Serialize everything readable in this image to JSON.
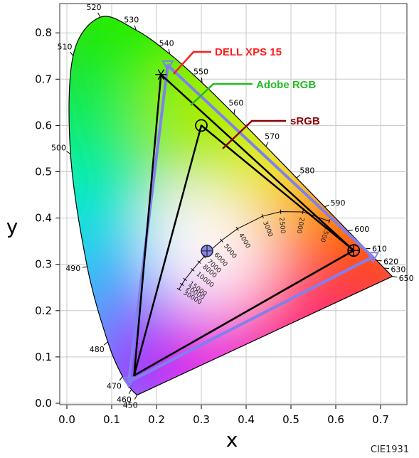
{
  "chart_data": {
    "type": "scatter",
    "title": "",
    "footer": "CIE1931",
    "xlabel": "x",
    "ylabel": "y",
    "xlim": [
      0.0,
      0.75
    ],
    "ylim": [
      0.0,
      0.85
    ],
    "x_ticks": [
      "0.0",
      "0.1",
      "0.2",
      "0.3",
      "0.4",
      "0.5",
      "0.6",
      "0.7"
    ],
    "y_ticks": [
      "0.0",
      "0.1",
      "0.2",
      "0.3",
      "0.4",
      "0.5",
      "0.6",
      "0.7",
      "0.8"
    ],
    "grid": true,
    "spectral_locus": [
      {
        "nm": "450",
        "x": 0.1566,
        "y": 0.0177
      },
      {
        "nm": "460",
        "x": 0.144,
        "y": 0.0297
      },
      {
        "nm": "470",
        "x": 0.1241,
        "y": 0.0578
      },
      {
        "nm": "480",
        "x": 0.0913,
        "y": 0.1327
      },
      {
        "nm": "490",
        "x": 0.0454,
        "y": 0.295
      },
      {
        "nm": "500",
        "x": 0.0082,
        "y": 0.5384
      },
      {
        "nm": "510",
        "x": 0.0139,
        "y": 0.7502
      },
      {
        "nm": "520",
        "x": 0.0743,
        "y": 0.8338
      },
      {
        "nm": "530",
        "x": 0.1547,
        "y": 0.8059
      },
      {
        "nm": "540",
        "x": 0.2296,
        "y": 0.7543
      },
      {
        "nm": "550",
        "x": 0.3016,
        "y": 0.6923
      },
      {
        "nm": "560",
        "x": 0.3731,
        "y": 0.6245
      },
      {
        "nm": "570",
        "x": 0.4441,
        "y": 0.5547
      },
      {
        "nm": "580",
        "x": 0.5125,
        "y": 0.4866
      },
      {
        "nm": "590",
        "x": 0.5752,
        "y": 0.4242
      },
      {
        "nm": "600",
        "x": 0.627,
        "y": 0.3725
      },
      {
        "nm": "610",
        "x": 0.6658,
        "y": 0.334
      },
      {
        "nm": "620",
        "x": 0.6915,
        "y": 0.3083
      },
      {
        "nm": "630",
        "x": 0.7079,
        "y": 0.292
      },
      {
        "nm": "650",
        "x": 0.726,
        "y": 0.274
      }
    ],
    "planckian_locus": [
      {
        "label": "1500",
        "x": 0.5857,
        "y": 0.3931
      },
      {
        "label": "2000",
        "x": 0.5267,
        "y": 0.4133
      },
      {
        "label": "2500",
        "x": 0.477,
        "y": 0.4137
      },
      {
        "label": "3000",
        "x": 0.4369,
        "y": 0.4041
      },
      {
        "label": "4000",
        "x": 0.3805,
        "y": 0.3768
      },
      {
        "label": "5000",
        "x": 0.3451,
        "y": 0.3516
      },
      {
        "label": "6000",
        "x": 0.3221,
        "y": 0.3318
      },
      {
        "label": "7000",
        "x": 0.3064,
        "y": 0.3166
      },
      {
        "label": "8000",
        "x": 0.2952,
        "y": 0.3048
      },
      {
        "label": "10000",
        "x": 0.2807,
        "y": 0.2883
      },
      {
        "label": "15000",
        "x": 0.2637,
        "y": 0.2673
      },
      {
        "label": "20000",
        "x": 0.2567,
        "y": 0.2566
      },
      {
        "label": "30000",
        "x": 0.25,
        "y": 0.246
      }
    ],
    "series": [
      {
        "name": "DELL XPS 15",
        "color": "#ff1a1a",
        "line_color": "#8080ee",
        "marker": "triangle",
        "points": [
          {
            "x": 0.225,
            "y": 0.73
          },
          {
            "x": 0.683,
            "y": 0.316
          },
          {
            "x": 0.138,
            "y": 0.046
          }
        ]
      },
      {
        "name": "Adobe RGB",
        "color": "#22bb22",
        "line_color": "#000000",
        "marker": "star",
        "points": [
          {
            "x": 0.21,
            "y": 0.71
          },
          {
            "x": 0.64,
            "y": 0.33
          },
          {
            "x": 0.15,
            "y": 0.06
          }
        ]
      },
      {
        "name": "sRGB",
        "color": "#8b0000",
        "line_color": "#000000",
        "marker": "circle",
        "points": [
          {
            "x": 0.3,
            "y": 0.6
          },
          {
            "x": 0.64,
            "y": 0.33
          },
          {
            "x": 0.15,
            "y": 0.06
          }
        ]
      }
    ],
    "white_point": {
      "x": 0.3127,
      "y": 0.329
    }
  }
}
